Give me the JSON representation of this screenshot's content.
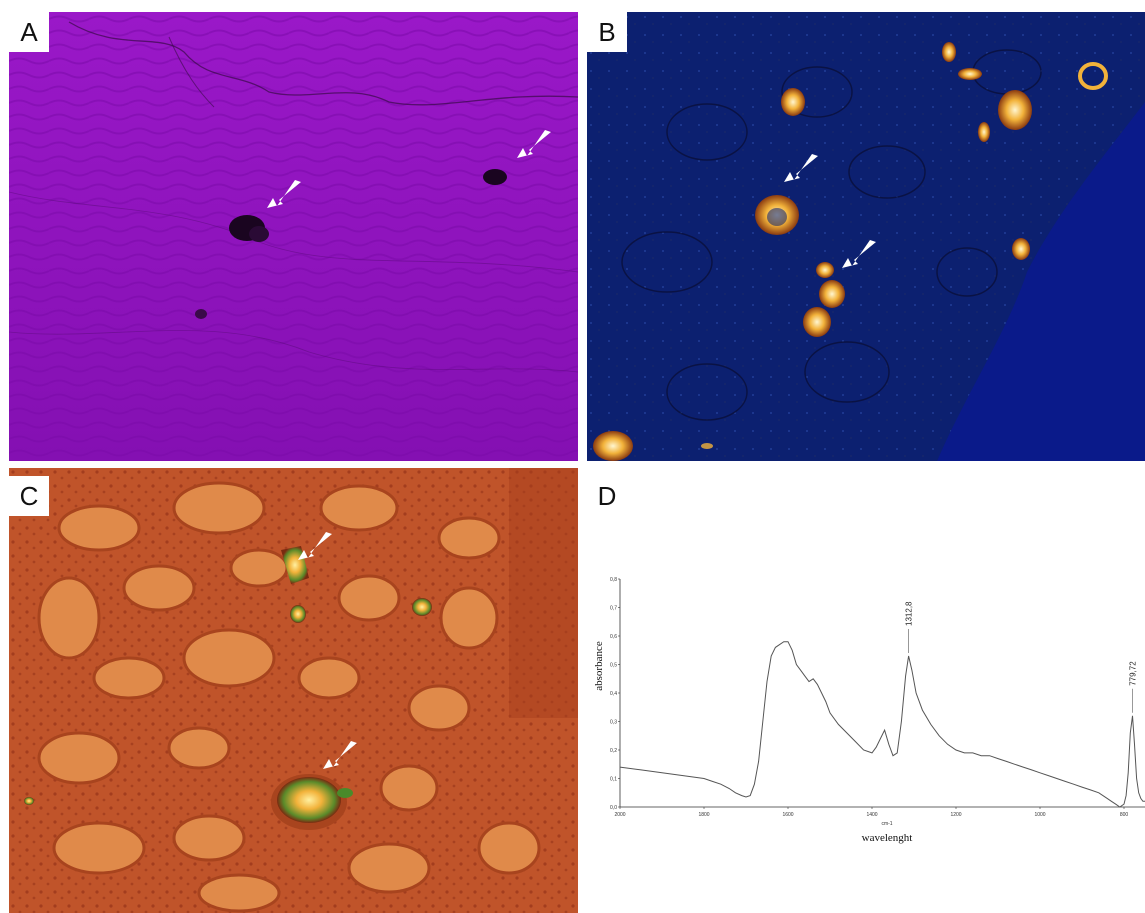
{
  "panels": {
    "a": {
      "label": "A"
    },
    "b": {
      "label": "B"
    },
    "c": {
      "label": "C"
    },
    "d": {
      "label": "D"
    }
  },
  "colors": {
    "panel_a_bg": "#8a10b8",
    "panel_b_bg": "#0a1a8a",
    "panel_c_bg": "#c0542a",
    "crystal_gold": "#f2b23a",
    "arrow": "#ffffff",
    "spectrum_line": "#555555"
  },
  "chart_data": {
    "type": "line",
    "title": "",
    "xlabel": "wavelenght",
    "x_unit": "cm-1",
    "ylabel": "absorbance",
    "xlim": [
      2000,
      750
    ],
    "ylim": [
      0.0,
      0.8
    ],
    "x_ticks": [
      "2000",
      "1800",
      "1600",
      "1400",
      "1200",
      "1000",
      "800"
    ],
    "y_ticks": [
      "0,0",
      "0,1",
      "0,2",
      "0,3",
      "0,4",
      "0,5",
      "0,6",
      "0,7",
      "0,8"
    ],
    "annotations": [
      {
        "text": "1312,8",
        "x": 1312.8,
        "y": 0.53
      },
      {
        "text": "779,72",
        "x": 779.72,
        "y": 0.32
      }
    ],
    "series": [
      {
        "x": [
          2000,
          1950,
          1900,
          1850,
          1800,
          1780,
          1760,
          1740,
          1725,
          1710,
          1700,
          1690,
          1680,
          1670,
          1660,
          1650,
          1640,
          1630,
          1620,
          1610,
          1600,
          1590,
          1580,
          1570,
          1560,
          1550,
          1540,
          1530,
          1520,
          1510,
          1500,
          1480,
          1460,
          1440,
          1420,
          1400,
          1390,
          1380,
          1370,
          1360,
          1350,
          1340,
          1330,
          1320,
          1312.8,
          1305,
          1295,
          1280,
          1260,
          1240,
          1220,
          1200,
          1180,
          1160,
          1140,
          1120,
          1100,
          1080,
          1060,
          1040,
          1020,
          1000,
          980,
          960,
          940,
          920,
          900,
          880,
          860,
          840,
          830,
          820,
          810,
          800,
          795,
          790,
          785,
          779.72,
          775,
          770,
          765,
          760,
          755,
          750
        ],
        "y": [
          0.14,
          0.13,
          0.12,
          0.11,
          0.1,
          0.09,
          0.08,
          0.065,
          0.05,
          0.04,
          0.035,
          0.04,
          0.08,
          0.16,
          0.3,
          0.44,
          0.53,
          0.56,
          0.57,
          0.58,
          0.58,
          0.55,
          0.5,
          0.48,
          0.46,
          0.44,
          0.45,
          0.43,
          0.4,
          0.37,
          0.33,
          0.29,
          0.26,
          0.23,
          0.2,
          0.19,
          0.21,
          0.24,
          0.27,
          0.22,
          0.18,
          0.19,
          0.3,
          0.46,
          0.53,
          0.48,
          0.4,
          0.34,
          0.29,
          0.25,
          0.22,
          0.2,
          0.19,
          0.19,
          0.18,
          0.18,
          0.17,
          0.16,
          0.15,
          0.14,
          0.13,
          0.12,
          0.11,
          0.1,
          0.09,
          0.08,
          0.07,
          0.06,
          0.05,
          0.03,
          0.02,
          0.01,
          0.0,
          0.01,
          0.04,
          0.12,
          0.26,
          0.32,
          0.22,
          0.1,
          0.05,
          0.03,
          0.02,
          0.02
        ]
      }
    ]
  }
}
